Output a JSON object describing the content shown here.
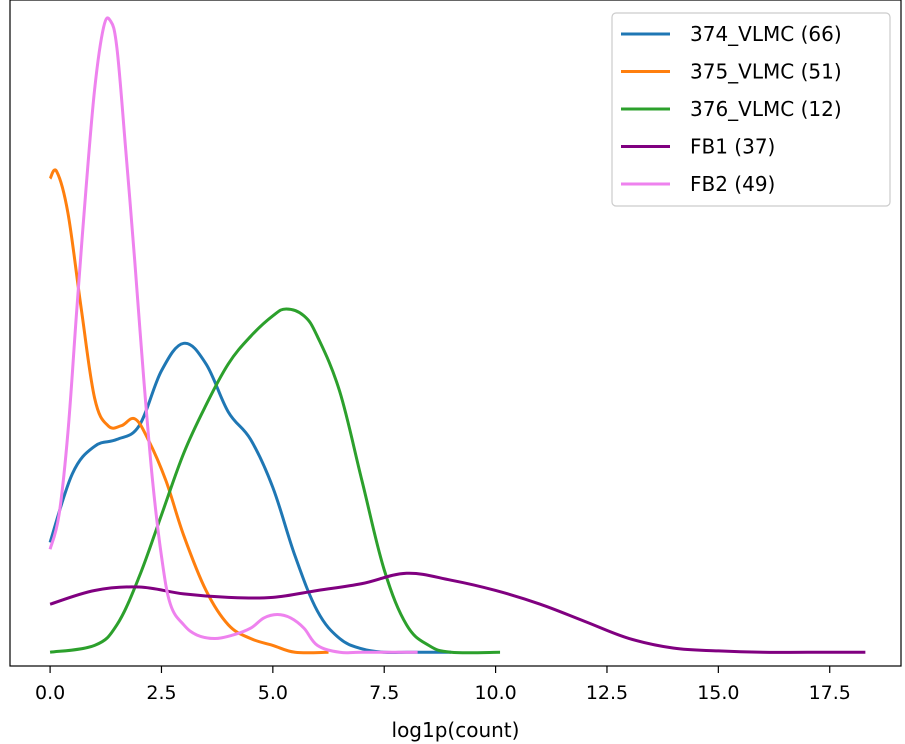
{
  "chart_data": {
    "type": "line",
    "title": "",
    "xlabel": "log1p(count)",
    "ylabel": "",
    "xlim": [
      -0.9,
      19.1
    ],
    "ylim": [
      -0.02,
      0.95
    ],
    "xticks": [
      0.0,
      2.5,
      5.0,
      7.5,
      10.0,
      12.5,
      15.0,
      17.5
    ],
    "xtick_labels": [
      "0.0",
      "2.5",
      "5.0",
      "7.5",
      "10.0",
      "12.5",
      "15.0",
      "17.5"
    ],
    "y_ticks_shown": false,
    "grid": false,
    "legend_position": "top-right",
    "series": [
      {
        "name": "374_VLMC (66)",
        "color": "#1f77b4",
        "x": [
          0,
          0.5,
          1.0,
          1.5,
          2.0,
          2.5,
          3.0,
          3.5,
          4.0,
          4.5,
          5.0,
          5.5,
          6.0,
          6.5,
          7.0,
          7.5,
          8.0,
          8.5,
          9.0
        ],
        "y": [
          0.16,
          0.26,
          0.3,
          0.31,
          0.33,
          0.41,
          0.45,
          0.42,
          0.35,
          0.31,
          0.24,
          0.14,
          0.06,
          0.02,
          0.005,
          0.0,
          0.0,
          0.0,
          0.0
        ]
      },
      {
        "name": "375_VLMC (51)",
        "color": "#ff7f0e",
        "x": [
          0,
          0.15,
          0.4,
          0.7,
          1.0,
          1.3,
          1.6,
          1.9,
          2.2,
          2.6,
          3.0,
          3.5,
          4.0,
          4.5,
          5.0,
          5.5,
          6.25
        ],
        "y": [
          0.69,
          0.7,
          0.64,
          0.5,
          0.37,
          0.33,
          0.33,
          0.34,
          0.31,
          0.25,
          0.17,
          0.09,
          0.04,
          0.02,
          0.01,
          0.0,
          0.0
        ]
      },
      {
        "name": "376_VLMC (12)",
        "color": "#2ca02c",
        "x": [
          0,
          1.0,
          1.5,
          2.0,
          2.5,
          3.0,
          3.5,
          4.0,
          4.5,
          5.0,
          5.3,
          5.7,
          6.0,
          6.5,
          7.0,
          7.5,
          8.0,
          8.5,
          9.0,
          10.1
        ],
        "y": [
          0.0,
          0.01,
          0.04,
          0.11,
          0.2,
          0.29,
          0.36,
          0.42,
          0.46,
          0.49,
          0.5,
          0.49,
          0.46,
          0.38,
          0.25,
          0.12,
          0.04,
          0.01,
          0.0,
          0.0
        ]
      },
      {
        "name": "FB1 (37)",
        "color": "#800080",
        "x": [
          0,
          1.0,
          2.0,
          3.0,
          4.0,
          5.0,
          6.0,
          7.0,
          8.0,
          9.0,
          10.0,
          11.0,
          12.0,
          13.0,
          14.0,
          15.0,
          16.0,
          17.0,
          18.3
        ],
        "y": [
          0.07,
          0.09,
          0.095,
          0.085,
          0.08,
          0.08,
          0.09,
          0.1,
          0.115,
          0.105,
          0.09,
          0.07,
          0.045,
          0.02,
          0.006,
          0.002,
          0.0,
          0.0,
          0.0
        ]
      },
      {
        "name": "FB2 (49)",
        "color": "#ee82ee",
        "x": [
          0,
          0.2,
          0.4,
          0.6,
          0.8,
          1.0,
          1.2,
          1.35,
          1.5,
          1.7,
          1.9,
          2.1,
          2.3,
          2.5,
          2.7,
          3.0,
          3.3,
          3.7,
          4.1,
          4.5,
          4.8,
          5.1,
          5.4,
          5.7,
          6.0,
          6.5,
          7.0,
          8.25
        ],
        "y": [
          0.15,
          0.2,
          0.32,
          0.5,
          0.67,
          0.82,
          0.91,
          0.92,
          0.88,
          0.73,
          0.57,
          0.4,
          0.25,
          0.14,
          0.07,
          0.04,
          0.025,
          0.02,
          0.025,
          0.035,
          0.05,
          0.055,
          0.05,
          0.035,
          0.01,
          0.0,
          0.0,
          0.0
        ]
      }
    ]
  }
}
